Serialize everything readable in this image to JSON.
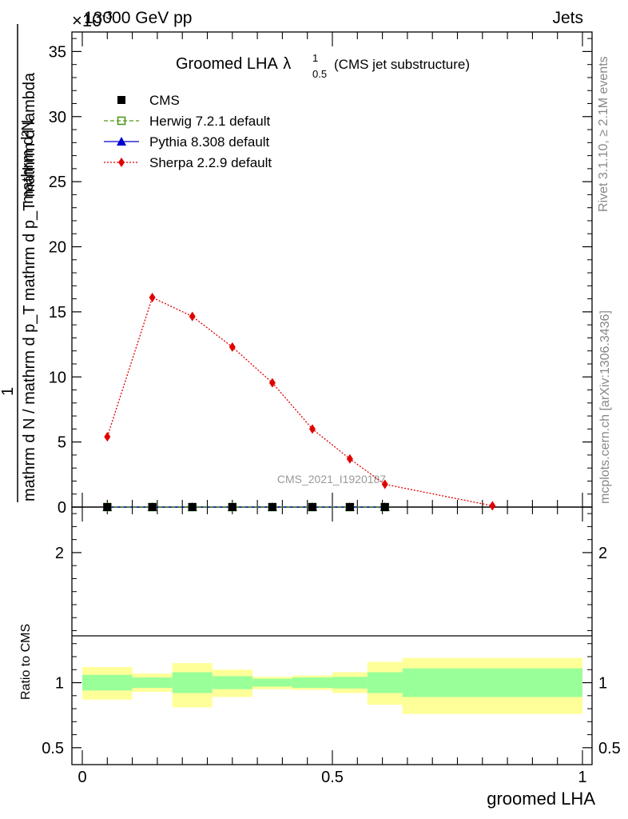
{
  "header": {
    "left": "13000 GeV pp",
    "right": "Jets",
    "exponent": "×10",
    "exponent_power": "-3"
  },
  "side_labels": {
    "rivet": "Rivet 3.1.10, ≥ 2.1M events",
    "mcplots": "mcplots.cern.ch [arXiv:1306.3436]"
  },
  "watermark": "CMS_2021_I1920187",
  "chart_data": [
    {
      "type": "line",
      "panel": "main",
      "title": {
        "main": "Groomed LHA",
        "lambda": "λ",
        "sup": "1",
        "sub": "0.5",
        "suffix": "(CMS jet substructure)"
      },
      "ylabel": {
        "numerator": "mathrm d²N",
        "denominator": "mathrm d N / mathrm d p_T mathrm d p_T mathrm d lambda",
        "prefix": "1"
      },
      "ylim": [
        0,
        36.5
      ],
      "y_unit_scale": "×10^-3",
      "yticks": [
        0,
        5,
        10,
        15,
        20,
        25,
        30,
        35
      ],
      "ytick_labels": [
        "0",
        "5",
        "10",
        "15",
        "20",
        "25",
        "30",
        "35"
      ],
      "xlim": [
        0,
        1
      ],
      "grid": false,
      "legend_placement": "top-left",
      "series": [
        {
          "name": "CMS",
          "color": "#000000",
          "marker": "square",
          "x": [
            0.05,
            0.14,
            0.22,
            0.3,
            0.38,
            0.46,
            0.535,
            0.605
          ],
          "y": [
            0,
            0,
            0,
            0,
            0,
            0,
            0,
            0
          ]
        },
        {
          "name": "Herwig 7.2.1 default",
          "color": "#4f9a1a",
          "marker": "open-square",
          "line": "dashed",
          "x": [
            0.05,
            0.14,
            0.22,
            0.3,
            0.38,
            0.46,
            0.535,
            0.605
          ],
          "y": [
            0,
            0,
            0,
            0,
            0,
            0,
            0,
            0
          ]
        },
        {
          "name": "Pythia 8.308 default",
          "color": "#0000cc",
          "marker": "triangle",
          "line": "solid",
          "x": [
            0.05,
            0.14,
            0.22,
            0.3,
            0.38,
            0.46,
            0.535,
            0.605
          ],
          "y": [
            0,
            0,
            0,
            0,
            0,
            0,
            0,
            0
          ]
        },
        {
          "name": "Sherpa 2.2.9 default",
          "color": "#e00000",
          "marker": "diamond",
          "line": "dotted",
          "x": [
            0.05,
            0.14,
            0.22,
            0.3,
            0.38,
            0.46,
            0.535,
            0.605,
            0.82
          ],
          "y": [
            5.4,
            16.1,
            14.65,
            12.3,
            9.55,
            6.0,
            3.7,
            1.75,
            0.1
          ]
        }
      ]
    },
    {
      "type": "area",
      "panel": "ratio",
      "ylabel": "Ratio to CMS",
      "ylim": [
        0.37,
        2.35
      ],
      "yticks": [
        0.5,
        1,
        2
      ],
      "ytick_labels": [
        "0.5",
        "1",
        "2"
      ],
      "xlabel": "groomed LHA",
      "xlim": [
        0,
        1
      ],
      "xtick_values": [
        0,
        0.5,
        1
      ],
      "xtick_labels": [
        "0",
        "0.5",
        "1"
      ],
      "ratio_line": 1,
      "bins": [
        {
          "x0": 0.0,
          "x1": 0.1,
          "inner": [
            0.94,
            1.06
          ],
          "outer": [
            0.87,
            1.12
          ]
        },
        {
          "x0": 0.1,
          "x1": 0.18,
          "inner": [
            0.96,
            1.04
          ],
          "outer": [
            0.93,
            1.07
          ]
        },
        {
          "x0": 0.18,
          "x1": 0.26,
          "inner": [
            0.92,
            1.08
          ],
          "outer": [
            0.81,
            1.15
          ]
        },
        {
          "x0": 0.26,
          "x1": 0.34,
          "inner": [
            0.95,
            1.05
          ],
          "outer": [
            0.89,
            1.1
          ]
        },
        {
          "x0": 0.34,
          "x1": 0.42,
          "inner": [
            0.97,
            1.03
          ],
          "outer": [
            0.95,
            1.045
          ]
        },
        {
          "x0": 0.42,
          "x1": 0.5,
          "inner": [
            0.96,
            1.04
          ],
          "outer": [
            0.945,
            1.055
          ]
        },
        {
          "x0": 0.5,
          "x1": 0.57,
          "inner": [
            0.955,
            1.045
          ],
          "outer": [
            0.92,
            1.08
          ]
        },
        {
          "x0": 0.57,
          "x1": 0.64,
          "inner": [
            0.92,
            1.08
          ],
          "outer": [
            0.83,
            1.16
          ]
        },
        {
          "x0": 0.64,
          "x1": 1.0,
          "inner": [
            0.89,
            1.11
          ],
          "outer": [
            0.76,
            1.19
          ]
        }
      ],
      "band_colors": {
        "inner": "#99ff99",
        "outer": "#ffff99"
      }
    }
  ]
}
